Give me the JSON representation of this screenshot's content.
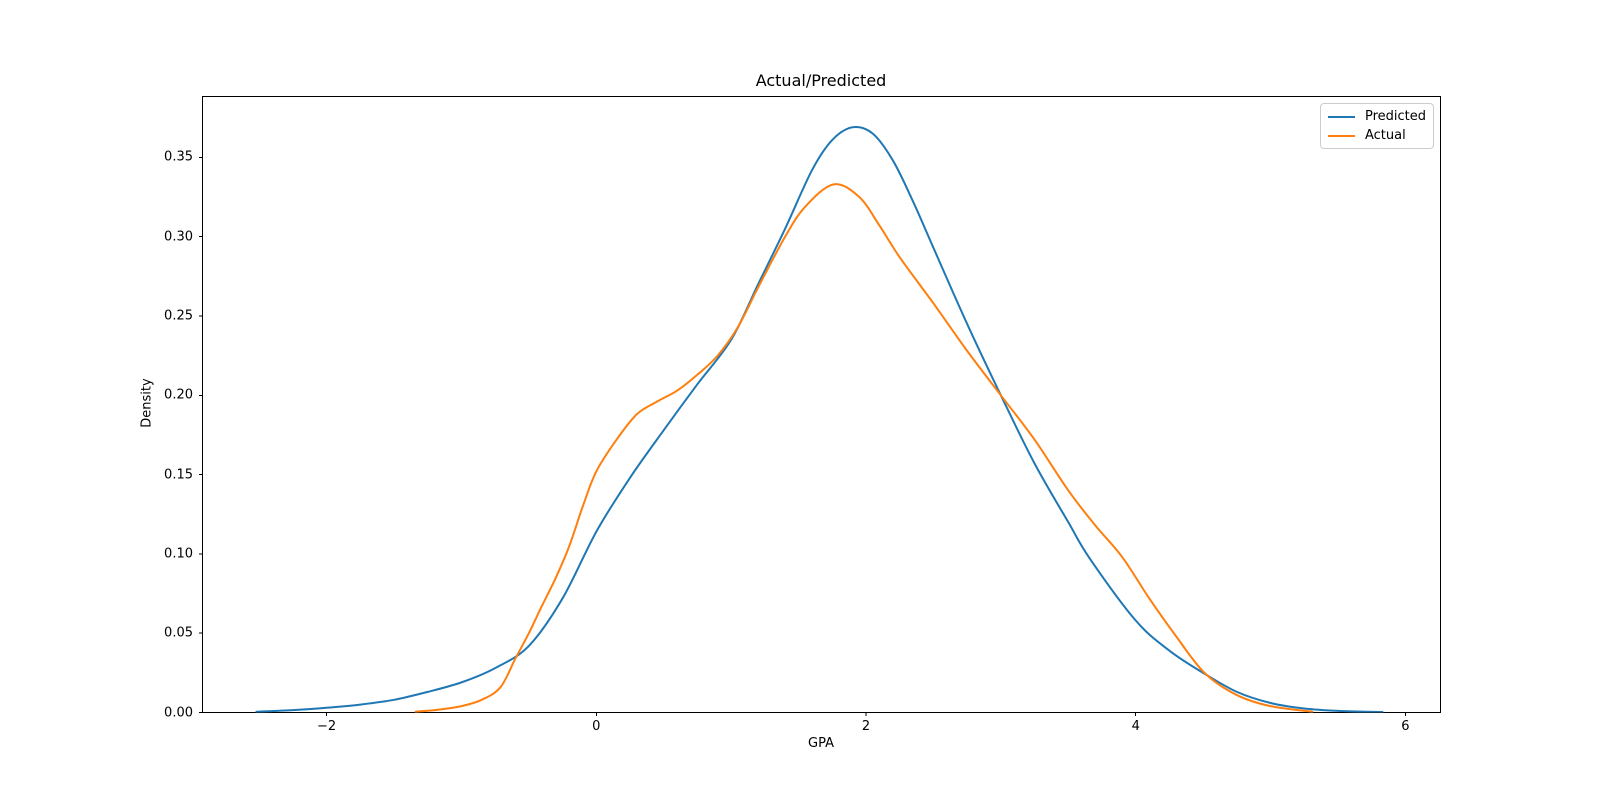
{
  "chart_data": {
    "type": "line",
    "title": "Actual/Predicted",
    "xlabel": "GPA",
    "ylabel": "Density",
    "grid": false,
    "legend_position": "upper right",
    "xlim": [
      -2.92,
      6.26
    ],
    "ylim": [
      0,
      0.3884
    ],
    "x_ticks": [
      -2,
      0,
      2,
      4,
      6
    ],
    "x_tick_labels": [
      "−2",
      "0",
      "2",
      "4",
      "6"
    ],
    "y_ticks": [
      0.0,
      0.05,
      0.1,
      0.15,
      0.2,
      0.25,
      0.3,
      0.35
    ],
    "y_tick_labels": [
      "0.00",
      "0.05",
      "0.10",
      "0.15",
      "0.20",
      "0.25",
      "0.30",
      "0.35"
    ],
    "series": [
      {
        "name": "Predicted",
        "color": "#1f77b4",
        "x": [
          -2.52,
          -2.25,
          -2.0,
          -1.75,
          -1.5,
          -1.25,
          -1.0,
          -0.75,
          -0.5,
          -0.25,
          0.0,
          0.25,
          0.5,
          0.75,
          1.0,
          1.2,
          1.4,
          1.6,
          1.75,
          1.9,
          2.05,
          2.2,
          2.35,
          2.5,
          2.75,
          3.0,
          3.25,
          3.5,
          3.66,
          4.0,
          4.25,
          4.5,
          4.75,
          5.0,
          5.25,
          5.5,
          5.83
        ],
        "y": [
          0.0005,
          0.0015,
          0.003,
          0.005,
          0.008,
          0.013,
          0.019,
          0.028,
          0.042,
          0.072,
          0.114,
          0.148,
          0.178,
          0.207,
          0.235,
          0.27,
          0.305,
          0.342,
          0.361,
          0.369,
          0.365,
          0.348,
          0.322,
          0.293,
          0.245,
          0.2,
          0.157,
          0.12,
          0.097,
          0.058,
          0.039,
          0.025,
          0.013,
          0.006,
          0.0025,
          0.001,
          0.0003
        ]
      },
      {
        "name": "Actual",
        "color": "#ff7f0e",
        "x": [
          -1.34,
          -1.15,
          -1.0,
          -0.85,
          -0.71,
          -0.6,
          -0.5,
          -0.41,
          -0.3,
          -0.2,
          -0.1,
          0.0,
          0.15,
          0.3,
          0.45,
          0.6,
          0.75,
          0.9,
          1.05,
          1.2,
          1.4,
          1.55,
          1.76,
          1.95,
          2.1,
          2.25,
          2.5,
          2.75,
          3.0,
          3.25,
          3.5,
          3.7,
          3.9,
          4.1,
          4.3,
          4.51,
          4.75,
          5.0,
          5.31
        ],
        "y": [
          0.0005,
          0.002,
          0.004,
          0.008,
          0.016,
          0.034,
          0.05,
          0.066,
          0.085,
          0.105,
          0.13,
          0.152,
          0.172,
          0.188,
          0.196,
          0.203,
          0.213,
          0.225,
          0.243,
          0.268,
          0.3,
          0.319,
          0.333,
          0.325,
          0.307,
          0.287,
          0.258,
          0.228,
          0.2,
          0.172,
          0.14,
          0.118,
          0.098,
          0.072,
          0.048,
          0.025,
          0.011,
          0.004,
          0.0005
        ]
      }
    ]
  }
}
